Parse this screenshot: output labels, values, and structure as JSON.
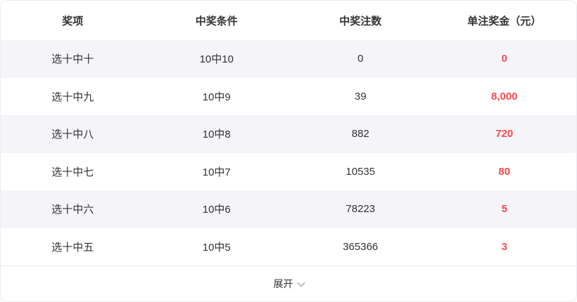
{
  "table": {
    "headers": [
      "奖项",
      "中奖条件",
      "中奖注数",
      "单注奖金（元）"
    ],
    "rows": [
      {
        "prize": "选十中十",
        "condition": "10中10",
        "count": "0",
        "amount": "0"
      },
      {
        "prize": "选十中九",
        "condition": "10中9",
        "count": "39",
        "amount": "8,000"
      },
      {
        "prize": "选十中八",
        "condition": "10中8",
        "count": "882",
        "amount": "720"
      },
      {
        "prize": "选十中七",
        "condition": "10中7",
        "count": "10535",
        "amount": "80"
      },
      {
        "prize": "选十中六",
        "condition": "10中6",
        "count": "78223",
        "amount": "5"
      },
      {
        "prize": "选十中五",
        "condition": "10中5",
        "count": "365366",
        "amount": "3"
      }
    ]
  },
  "footer": {
    "expand_label": "展开"
  },
  "colors": {
    "accent_red": "#f8494d",
    "row_stripe": "#f4f4f9",
    "card_border": "#ededf2",
    "text": "#333333"
  }
}
